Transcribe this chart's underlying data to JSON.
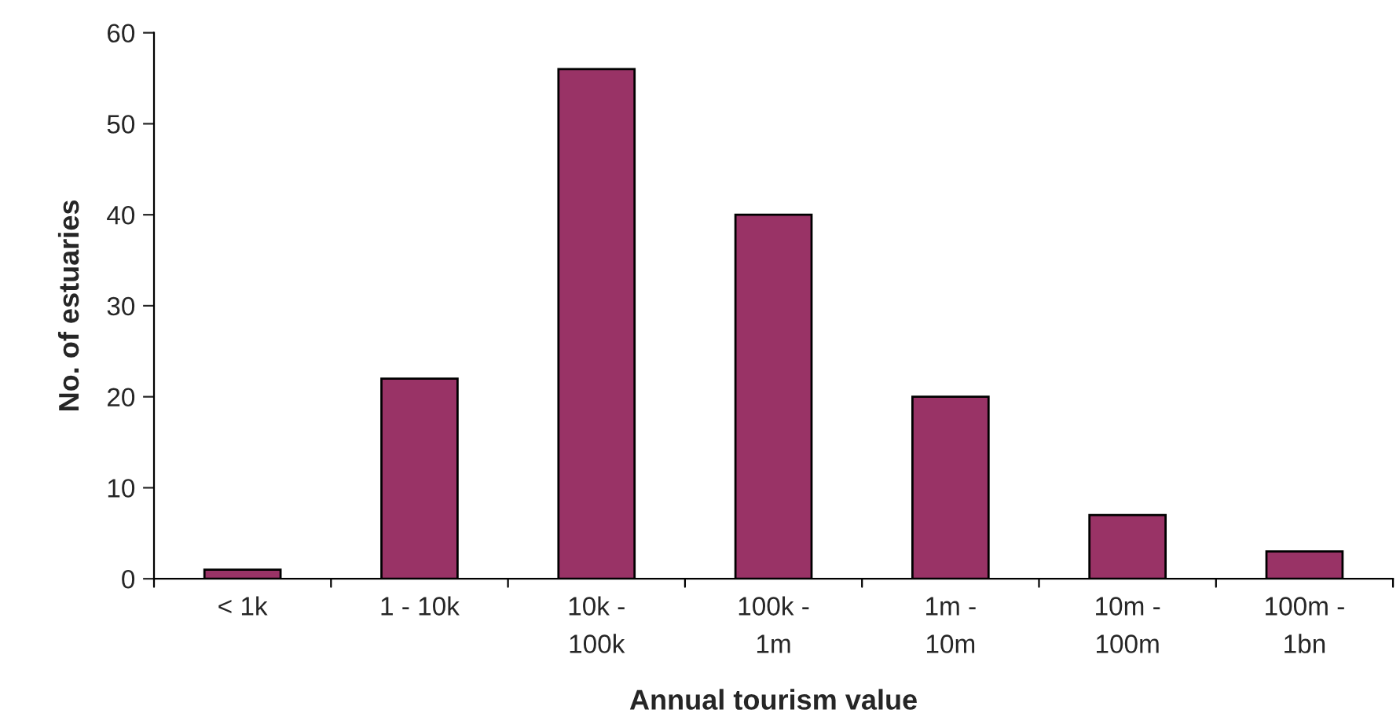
{
  "chart_data": {
    "type": "bar",
    "xlabel": "Annual tourism value",
    "ylabel": "No. of estuaries",
    "categories": [
      "< 1k",
      "1 - 10k",
      "10k -\n100k",
      "100k -\n1m",
      "1m -\n10m",
      "10m -\n100m",
      "100m -\n1bn"
    ],
    "values": [
      1,
      22,
      56,
      40,
      20,
      7,
      3
    ],
    "color": "#993366",
    "ylim": [
      0,
      60
    ],
    "yticks": [
      0,
      10,
      20,
      30,
      40,
      50,
      60
    ],
    "grid": false,
    "legend": false
  }
}
